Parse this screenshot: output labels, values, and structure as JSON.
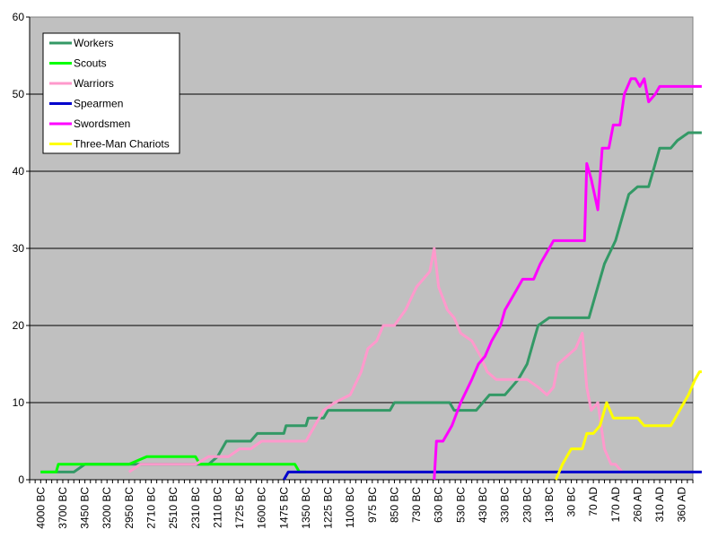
{
  "chart_data": {
    "type": "line",
    "title": "",
    "xlabel": "",
    "ylabel": "",
    "ylim": [
      0,
      60
    ],
    "yticks": [
      0,
      10,
      20,
      30,
      40,
      50,
      60
    ],
    "grid": "horizontal",
    "legend_position": "top-left",
    "background_color": "#c0c0c0",
    "x_labels": [
      "4000 BC",
      "3700 BC",
      "3450 BC",
      "3200 BC",
      "2950 BC",
      "2710 BC",
      "2510 BC",
      "2310 BC",
      "2110 BC",
      "1725 BC",
      "1600 BC",
      "1475 BC",
      "1350 BC",
      "1225 BC",
      "1100 BC",
      "975 BC",
      "850 BC",
      "730 BC",
      "630 BC",
      "530 BC",
      "430 BC",
      "330 BC",
      "230 BC",
      "130 BC",
      "30 BC",
      "70 AD",
      "170 AD",
      "260 AD",
      "310 AD",
      "360 AD"
    ],
    "series": [
      {
        "name": "Workers",
        "color": "#339966",
        "points": [
          [
            0,
            1
          ],
          [
            0.6,
            1
          ],
          [
            1,
            1
          ],
          [
            1.5,
            1
          ],
          [
            2,
            2
          ],
          [
            3,
            2
          ],
          [
            4,
            2
          ],
          [
            5,
            2
          ],
          [
            6,
            2
          ],
          [
            7,
            2
          ],
          [
            7.6,
            2
          ],
          [
            8,
            3
          ],
          [
            8.4,
            5
          ],
          [
            9,
            5
          ],
          [
            9.5,
            5
          ],
          [
            9.8,
            6
          ],
          [
            10,
            6
          ],
          [
            11,
            6
          ],
          [
            11.1,
            7
          ],
          [
            12,
            7
          ],
          [
            12.1,
            8
          ],
          [
            12.8,
            8
          ],
          [
            13,
            9
          ],
          [
            14,
            9
          ],
          [
            15,
            9
          ],
          [
            15.8,
            9
          ],
          [
            16,
            10
          ],
          [
            17,
            10
          ],
          [
            18,
            10
          ],
          [
            18.5,
            10
          ],
          [
            18.7,
            9
          ],
          [
            19,
            9
          ],
          [
            19.7,
            9
          ],
          [
            20,
            10
          ],
          [
            20.3,
            11
          ],
          [
            21,
            11
          ],
          [
            21.3,
            12
          ],
          [
            21.6,
            13
          ],
          [
            22,
            15
          ],
          [
            22.3,
            18
          ],
          [
            22.5,
            20
          ],
          [
            23,
            21
          ],
          [
            24,
            21
          ],
          [
            24.8,
            21
          ],
          [
            25.1,
            24
          ],
          [
            25.5,
            28
          ],
          [
            26,
            31
          ],
          [
            26.3,
            34
          ],
          [
            26.6,
            37
          ],
          [
            27,
            38
          ],
          [
            27.5,
            38
          ],
          [
            27.8,
            41
          ],
          [
            28,
            43
          ],
          [
            28.5,
            43
          ],
          [
            28.8,
            44
          ],
          [
            29.3,
            45
          ],
          [
            29.9,
            45
          ]
        ]
      },
      {
        "name": "Scouts",
        "color": "#00ff00",
        "points": [
          [
            0,
            1
          ],
          [
            0.7,
            1
          ],
          [
            0.8,
            2
          ],
          [
            1.5,
            2
          ],
          [
            2,
            2
          ],
          [
            3,
            2
          ],
          [
            4,
            2
          ],
          [
            4.8,
            3
          ],
          [
            5,
            3
          ],
          [
            6,
            3
          ],
          [
            7,
            3
          ],
          [
            7.2,
            2
          ],
          [
            8,
            2
          ],
          [
            9,
            2
          ],
          [
            10,
            2
          ],
          [
            11,
            2
          ],
          [
            11.5,
            2
          ],
          [
            11.7,
            1
          ],
          [
            12,
            1
          ]
        ]
      },
      {
        "name": "Warriors",
        "color": "#ff99cc",
        "points": [
          [
            4,
            1
          ],
          [
            4.5,
            2
          ],
          [
            5,
            2
          ],
          [
            6,
            2
          ],
          [
            7,
            2
          ],
          [
            7.6,
            3
          ],
          [
            8,
            3
          ],
          [
            8.5,
            3
          ],
          [
            9,
            4
          ],
          [
            9.5,
            4
          ],
          [
            10,
            5
          ],
          [
            11,
            5
          ],
          [
            12,
            5
          ],
          [
            12.4,
            7
          ],
          [
            12.8,
            9
          ],
          [
            13.3,
            10
          ],
          [
            14,
            11
          ],
          [
            14.5,
            14
          ],
          [
            14.8,
            17
          ],
          [
            15.2,
            18
          ],
          [
            15.5,
            20
          ],
          [
            16,
            20
          ],
          [
            16.5,
            22
          ],
          [
            17,
            25
          ],
          [
            17.6,
            27
          ],
          [
            17.8,
            30
          ],
          [
            18,
            25
          ],
          [
            18.4,
            22
          ],
          [
            18.7,
            21
          ],
          [
            19,
            19
          ],
          [
            19.5,
            18
          ],
          [
            19.9,
            16
          ],
          [
            20.2,
            14
          ],
          [
            20.6,
            13
          ],
          [
            21,
            13
          ],
          [
            21.5,
            13
          ],
          [
            22,
            13
          ],
          [
            22.5,
            12
          ],
          [
            22.9,
            11
          ],
          [
            23.2,
            12
          ],
          [
            23.4,
            15
          ],
          [
            23.8,
            16
          ],
          [
            24.2,
            17
          ],
          [
            24.5,
            19
          ],
          [
            24.7,
            12
          ],
          [
            24.9,
            9
          ],
          [
            25.2,
            10
          ],
          [
            25.5,
            4
          ],
          [
            25.8,
            2
          ],
          [
            26,
            2
          ],
          [
            26.3,
            1
          ]
        ]
      },
      {
        "name": "Spearmen",
        "color": "#0000cc",
        "points": [
          [
            11,
            0
          ],
          [
            11.2,
            1
          ],
          [
            12,
            1
          ],
          [
            13,
            1
          ],
          [
            14,
            1
          ],
          [
            15,
            1
          ],
          [
            16,
            1
          ],
          [
            17,
            1
          ],
          [
            18,
            1
          ],
          [
            19,
            1
          ],
          [
            20,
            1
          ],
          [
            21,
            1
          ],
          [
            22,
            1
          ],
          [
            23,
            1
          ],
          [
            24,
            1
          ],
          [
            25,
            1
          ],
          [
            26,
            1
          ],
          [
            27,
            1
          ],
          [
            28,
            1
          ],
          [
            29,
            1
          ],
          [
            29.9,
            1
          ]
        ]
      },
      {
        "name": "Swordsmen",
        "color": "#ff00ff",
        "points": [
          [
            17.8,
            0
          ],
          [
            17.9,
            5
          ],
          [
            18.2,
            5
          ],
          [
            18.6,
            7
          ],
          [
            19,
            10
          ],
          [
            19.5,
            13
          ],
          [
            19.8,
            15
          ],
          [
            20.1,
            16
          ],
          [
            20.4,
            18
          ],
          [
            20.8,
            20
          ],
          [
            21,
            22
          ],
          [
            21.4,
            24
          ],
          [
            21.8,
            26
          ],
          [
            22.3,
            26
          ],
          [
            22.6,
            28
          ],
          [
            23,
            30
          ],
          [
            23.2,
            31
          ],
          [
            24,
            31
          ],
          [
            24.6,
            31
          ],
          [
            24.7,
            41
          ],
          [
            24.9,
            39
          ],
          [
            25.2,
            35
          ],
          [
            25.4,
            43
          ],
          [
            25.7,
            43
          ],
          [
            25.9,
            46
          ],
          [
            26.2,
            46
          ],
          [
            26.4,
            50
          ],
          [
            26.7,
            52
          ],
          [
            26.9,
            52
          ],
          [
            27.1,
            51
          ],
          [
            27.3,
            52
          ],
          [
            27.5,
            49
          ],
          [
            27.8,
            50
          ],
          [
            28,
            51
          ],
          [
            29,
            51
          ],
          [
            29.9,
            51
          ]
        ]
      },
      {
        "name": "Three-Man Chariots",
        "color": "#ffff00",
        "points": [
          [
            23.3,
            0
          ],
          [
            23.6,
            2
          ],
          [
            24,
            4
          ],
          [
            24.5,
            4
          ],
          [
            24.7,
            6
          ],
          [
            25,
            6
          ],
          [
            25.3,
            7
          ],
          [
            25.6,
            10
          ],
          [
            25.9,
            8
          ],
          [
            26.5,
            8
          ],
          [
            27,
            8
          ],
          [
            27.3,
            7
          ],
          [
            28,
            7
          ],
          [
            28.5,
            7
          ],
          [
            28.9,
            9
          ],
          [
            29.3,
            11
          ],
          [
            29.6,
            13
          ],
          [
            29.8,
            14
          ],
          [
            29.9,
            14
          ]
        ]
      }
    ]
  }
}
